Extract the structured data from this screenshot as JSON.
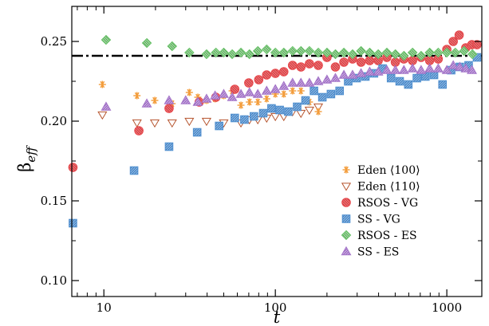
{
  "chart_data": {
    "type": "scatter",
    "xlabel": "t",
    "ylabel_main": "β",
    "ylabel_sub": "eff",
    "xscale": "log",
    "xlim": [
      6.5,
      1600
    ],
    "ylim": [
      0.09,
      0.272
    ],
    "x_ticks": [
      10,
      100,
      1000
    ],
    "x_tick_labels": [
      "10",
      "100",
      "1000"
    ],
    "y_ticks": [
      0.1,
      0.15,
      0.2,
      0.25
    ],
    "y_tick_labels": [
      "0.10",
      "0.15",
      "0.20",
      "0.25"
    ],
    "reference_line": {
      "y": 0.241,
      "style": "dash-dot"
    },
    "grid": false,
    "legend_position": "bottom-right",
    "series": [
      {
        "name": "Eden ⟨100⟩",
        "marker": "star",
        "color": "#f39c3a",
        "points": [
          [
            9.8,
            0.223
          ],
          [
            15.6,
            0.216
          ],
          [
            19.8,
            0.213
          ],
          [
            25,
            0.211
          ],
          [
            31.5,
            0.218
          ],
          [
            35.3,
            0.215
          ],
          [
            39.7,
            0.213
          ],
          [
            44.5,
            0.214
          ],
          [
            50,
            0.216
          ],
          [
            56,
            0.219
          ],
          [
            63,
            0.21
          ],
          [
            70.6,
            0.212
          ],
          [
            79,
            0.212
          ],
          [
            89,
            0.214
          ],
          [
            100,
            0.217
          ],
          [
            112,
            0.217
          ],
          [
            126,
            0.219
          ],
          [
            141,
            0.219
          ],
          [
            158,
            0.212
          ],
          [
            178,
            0.206
          ]
        ]
      },
      {
        "name": "Eden ⟨110⟩",
        "marker": "triangle-down-open",
        "color": "#b5522b",
        "points": [
          [
            9.8,
            0.204
          ],
          [
            15.6,
            0.199
          ],
          [
            19.8,
            0.199
          ],
          [
            25,
            0.199
          ],
          [
            31.5,
            0.2
          ],
          [
            39.7,
            0.2
          ],
          [
            50,
            0.199
          ],
          [
            63,
            0.199
          ],
          [
            70.6,
            0.201
          ],
          [
            79,
            0.201
          ],
          [
            89,
            0.202
          ],
          [
            100,
            0.203
          ],
          [
            112,
            0.203
          ],
          [
            126,
            0.206
          ],
          [
            141,
            0.205
          ],
          [
            158,
            0.207
          ],
          [
            178,
            0.209
          ]
        ]
      },
      {
        "name": "RSOS - VG",
        "marker": "circle",
        "color": "#e8474b",
        "points": [
          [
            6.6,
            0.171
          ],
          [
            16,
            0.194
          ],
          [
            24,
            0.208
          ],
          [
            36,
            0.212
          ],
          [
            45,
            0.215
          ],
          [
            58,
            0.22
          ],
          [
            70,
            0.224
          ],
          [
            80,
            0.226
          ],
          [
            89,
            0.229
          ],
          [
            100,
            0.23
          ],
          [
            112,
            0.231
          ],
          [
            126,
            0.235
          ],
          [
            141,
            0.234
          ],
          [
            158,
            0.236
          ],
          [
            178,
            0.235
          ],
          [
            200,
            0.24
          ],
          [
            224,
            0.234
          ],
          [
            251,
            0.237
          ],
          [
            282,
            0.239
          ],
          [
            316,
            0.237
          ],
          [
            355,
            0.238
          ],
          [
            398,
            0.238
          ],
          [
            447,
            0.24
          ],
          [
            501,
            0.237
          ],
          [
            562,
            0.239
          ],
          [
            631,
            0.238
          ],
          [
            708,
            0.24
          ],
          [
            794,
            0.238
          ],
          [
            891,
            0.239
          ],
          [
            1000,
            0.245
          ],
          [
            1090,
            0.25
          ],
          [
            1180,
            0.254
          ],
          [
            1290,
            0.246
          ],
          [
            1400,
            0.248
          ],
          [
            1500,
            0.248
          ]
        ]
      },
      {
        "name": "SS - VG",
        "marker": "square",
        "color": "#4f8fd0",
        "points": [
          [
            6.6,
            0.136
          ],
          [
            15,
            0.169
          ],
          [
            24,
            0.184
          ],
          [
            35,
            0.193
          ],
          [
            47,
            0.197
          ],
          [
            58,
            0.202
          ],
          [
            66,
            0.201
          ],
          [
            75,
            0.203
          ],
          [
            85,
            0.205
          ],
          [
            95,
            0.208
          ],
          [
            106,
            0.207
          ],
          [
            119,
            0.206
          ],
          [
            134,
            0.209
          ],
          [
            150,
            0.213
          ],
          [
            168,
            0.219
          ],
          [
            188,
            0.215
          ],
          [
            211,
            0.217
          ],
          [
            237,
            0.219
          ],
          [
            266,
            0.225
          ],
          [
            298,
            0.227
          ],
          [
            335,
            0.228
          ],
          [
            376,
            0.23
          ],
          [
            422,
            0.233
          ],
          [
            473,
            0.227
          ],
          [
            531,
            0.225
          ],
          [
            596,
            0.223
          ],
          [
            669,
            0.227
          ],
          [
            750,
            0.228
          ],
          [
            842,
            0.229
          ],
          [
            944,
            0.223
          ],
          [
            1060,
            0.232
          ],
          [
            1190,
            0.234
          ],
          [
            1340,
            0.235
          ],
          [
            1500,
            0.24
          ]
        ]
      },
      {
        "name": "RSOS - ES",
        "marker": "diamond",
        "color": "#6cc46c",
        "points": [
          [
            10.3,
            0.251
          ],
          [
            17.8,
            0.249
          ],
          [
            25,
            0.247
          ],
          [
            31.5,
            0.243
          ],
          [
            39.7,
            0.242
          ],
          [
            45,
            0.243
          ],
          [
            50,
            0.243
          ],
          [
            56,
            0.242
          ],
          [
            63,
            0.243
          ],
          [
            70.6,
            0.242
          ],
          [
            79,
            0.244
          ],
          [
            89,
            0.245
          ],
          [
            100,
            0.243
          ],
          [
            112,
            0.243
          ],
          [
            126,
            0.244
          ],
          [
            141,
            0.244
          ],
          [
            158,
            0.244
          ],
          [
            178,
            0.243
          ],
          [
            200,
            0.243
          ],
          [
            224,
            0.242
          ],
          [
            251,
            0.243
          ],
          [
            282,
            0.242
          ],
          [
            316,
            0.244
          ],
          [
            355,
            0.243
          ],
          [
            398,
            0.242
          ],
          [
            447,
            0.243
          ],
          [
            501,
            0.242
          ],
          [
            562,
            0.241
          ],
          [
            631,
            0.243
          ],
          [
            708,
            0.241
          ],
          [
            794,
            0.243
          ],
          [
            891,
            0.243
          ],
          [
            1000,
            0.243
          ],
          [
            1120,
            0.243
          ],
          [
            1260,
            0.244
          ],
          [
            1410,
            0.242
          ]
        ]
      },
      {
        "name": "SS - ES",
        "marker": "triangle-up",
        "color": "#a373c8",
        "points": [
          [
            10.3,
            0.209
          ],
          [
            17.8,
            0.211
          ],
          [
            24,
            0.213
          ],
          [
            30,
            0.213
          ],
          [
            35.3,
            0.212
          ],
          [
            39.7,
            0.214
          ],
          [
            44.5,
            0.216
          ],
          [
            50,
            0.217
          ],
          [
            56,
            0.215
          ],
          [
            63,
            0.217
          ],
          [
            70.6,
            0.218
          ],
          [
            79,
            0.217
          ],
          [
            89,
            0.219
          ],
          [
            100,
            0.22
          ],
          [
            112,
            0.222
          ],
          [
            126,
            0.224
          ],
          [
            141,
            0.224
          ],
          [
            158,
            0.224
          ],
          [
            178,
            0.225
          ],
          [
            200,
            0.226
          ],
          [
            224,
            0.227
          ],
          [
            251,
            0.229
          ],
          [
            282,
            0.229
          ],
          [
            316,
            0.23
          ],
          [
            355,
            0.231
          ],
          [
            398,
            0.231
          ],
          [
            447,
            0.232
          ],
          [
            501,
            0.232
          ],
          [
            562,
            0.232
          ],
          [
            631,
            0.233
          ],
          [
            708,
            0.232
          ],
          [
            794,
            0.233
          ],
          [
            891,
            0.233
          ],
          [
            1000,
            0.232
          ],
          [
            1090,
            0.235
          ],
          [
            1190,
            0.234
          ],
          [
            1290,
            0.233
          ],
          [
            1400,
            0.232
          ]
        ]
      }
    ]
  }
}
